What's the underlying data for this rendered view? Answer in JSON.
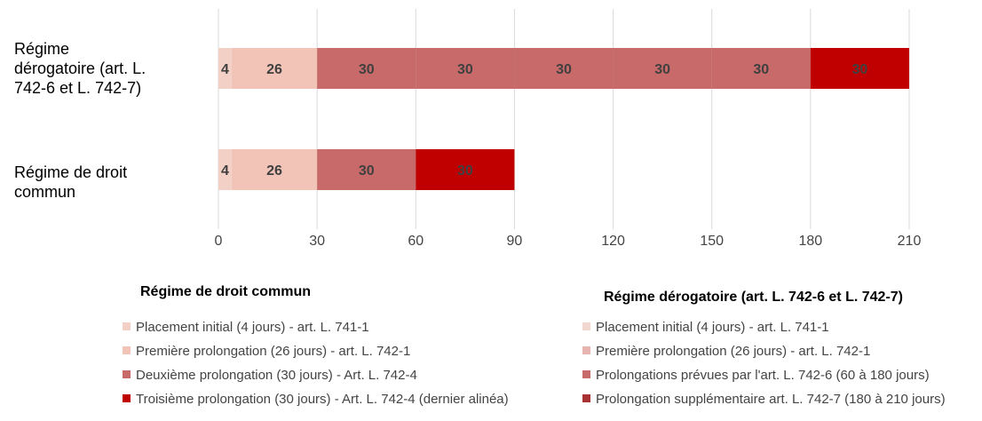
{
  "chart_data": {
    "type": "bar",
    "orientation": "horizontal",
    "stacked": true,
    "categories": [
      "Régime dérogatoire (art. L. 742-6 et L. 742-7)",
      "Régime de droit commun"
    ],
    "segments": [
      [
        {
          "value": 4,
          "label": "4",
          "color": "#f2d0c6"
        },
        {
          "value": 26,
          "label": "26",
          "color": "#f2c4b8"
        },
        {
          "value": 30,
          "label": "30",
          "color": "#c86a6a"
        },
        {
          "value": 30,
          "label": "30",
          "color": "#c86a6a"
        },
        {
          "value": 30,
          "label": "30",
          "color": "#c86a6a"
        },
        {
          "value": 30,
          "label": "30",
          "color": "#c86a6a"
        },
        {
          "value": 30,
          "label": "30",
          "color": "#c86a6a"
        },
        {
          "value": 30,
          "label": "30",
          "color": "#c00000"
        }
      ],
      [
        {
          "value": 4,
          "label": "4",
          "color": "#f2d0c6"
        },
        {
          "value": 26,
          "label": "26",
          "color": "#f2c4b8"
        },
        {
          "value": 30,
          "label": "30",
          "color": "#c86a6a"
        },
        {
          "value": 30,
          "label": "30",
          "color": "#c00000"
        }
      ]
    ],
    "xlim": [
      0,
      210
    ],
    "xticks": [
      "0",
      "30",
      "60",
      "90",
      "120",
      "150",
      "180",
      "210"
    ],
    "grid": "vertical",
    "legend_placement": "bottom"
  },
  "legends": [
    {
      "title": "Régime de droit commun",
      "items": [
        {
          "label": "Placement initial (4 jours) - art. L. 741-1",
          "color": "#f2d0c6"
        },
        {
          "label": "Première prolongation (26 jours) - art. L. 742-1",
          "color": "#f2c4b8"
        },
        {
          "label": "Deuxième prolongation (30 jours) - Art. L. 742-4",
          "color": "#c86a6a"
        },
        {
          "label": "Troisième prolongation (30 jours) - Art. L. 742-4 (dernier alinéa)",
          "color": "#c00000"
        }
      ]
    },
    {
      "title": "Régime dérogatoire (art. L. 742-6 et L. 742-7)",
      "items": [
        {
          "label": "Placement initial (4 jours) - art. L. 741-1",
          "color": "#f2d6d0"
        },
        {
          "label": "Première prolongation (26 jours) - art. L. 742-1",
          "color": "#e8b4b0"
        },
        {
          "label": "Prolongations prévues par l'art. L. 742-6 (60 à 180 jours)",
          "color": "#c86a6a"
        },
        {
          "label": "Prolongation supplémentaire art. L. 742-7 (180 à 210 jours)",
          "color": "#a83232"
        }
      ]
    }
  ]
}
